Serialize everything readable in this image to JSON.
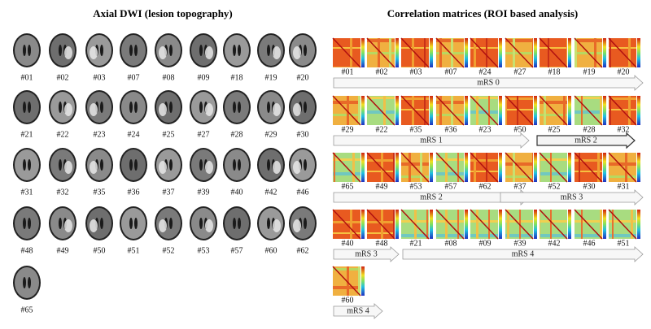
{
  "left": {
    "title": "Axial DWI (lesion topography)",
    "rows": [
      [
        "#01",
        "#02",
        "#03",
        "#07",
        "#08",
        "#09",
        "#18",
        "#19",
        "#20"
      ],
      [
        "#21",
        "#22",
        "#23",
        "#24",
        "#25",
        "#27",
        "#28",
        "#29",
        "#30"
      ],
      [
        "#31",
        "#32",
        "#35",
        "#36",
        "#37",
        "#39",
        "#40",
        "#42",
        "#46"
      ],
      [
        "#48",
        "#49",
        "#50",
        "#51",
        "#52",
        "#53",
        "#57",
        "#60",
        "#62"
      ],
      [
        "#65"
      ]
    ]
  },
  "right": {
    "title": "Correlation matrices (ROI based analysis)",
    "rows": [
      {
        "labels": [
          "#01",
          "#02",
          "#03",
          "#07",
          "#24",
          "#27",
          "#18",
          "#19",
          "#20"
        ],
        "arrows": [
          "mRS 0"
        ]
      },
      {
        "labels": [
          "#29",
          "#22",
          "#35",
          "#36",
          "#23",
          "#50",
          "#25",
          "#28",
          "#32"
        ],
        "arrows": [
          "mRS 1",
          "mRS 2"
        ]
      },
      {
        "labels": [
          "#65",
          "#49",
          "#53",
          "#57",
          "#62",
          "#37",
          "#52",
          "#30",
          "#31"
        ],
        "arrows": [
          "mRS 2",
          "mRS 3"
        ]
      },
      {
        "labels": [
          "#40",
          "#48",
          "#21",
          "#08",
          "#09",
          "#39",
          "#42",
          "#46",
          "#51"
        ],
        "arrows": [
          "mRS 3",
          "mRS 4"
        ]
      },
      {
        "labels": [
          "#60"
        ],
        "arrows": [
          "mRS 4"
        ]
      }
    ]
  }
}
